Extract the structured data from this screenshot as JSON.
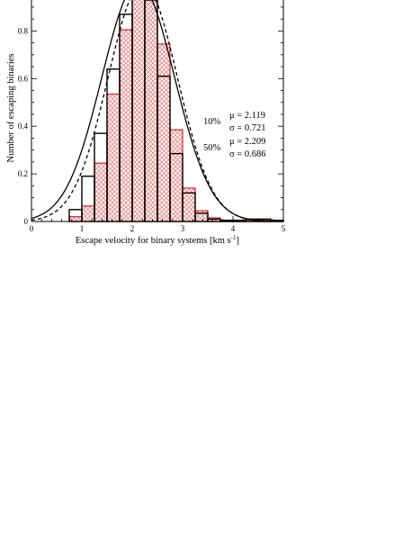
{
  "chart_data": {
    "type": "bar",
    "xlabel": "Escape velocity for binary systems [km s",
    "xlabel_superscript": "-1",
    "xlabel_close": "]",
    "ylabel": "Number of escaping binaries",
    "xlim": [
      0,
      5
    ],
    "ylim": [
      0,
      0.93
    ],
    "x_ticks": [
      "0",
      "1",
      "2",
      "3",
      "4",
      "5"
    ],
    "y_ticks": [
      "0",
      "0.2",
      "0.4",
      "0.6",
      "0.8"
    ],
    "bin_width": 0.25,
    "bin_left_edges": [
      0.75,
      1.0,
      1.25,
      1.5,
      1.75,
      2.0,
      2.25,
      2.5,
      2.75,
      3.0,
      3.25,
      3.5,
      3.75,
      4.0,
      4.25,
      4.5,
      4.75
    ],
    "series": [
      {
        "name": "10%",
        "style": "black outlined bars",
        "color": "#000000",
        "values": [
          0.05,
          0.19,
          0.37,
          0.64,
          0.87,
          1.0,
          0.93,
          0.61,
          0.285,
          0.12,
          0.035,
          0.01,
          0.005,
          0.005,
          0.01,
          0.01,
          0.005
        ],
        "fit": {
          "mu": 2.119,
          "sigma": 0.721,
          "line_style": "solid"
        }
      },
      {
        "name": "50%",
        "style": "red hatched bars",
        "color": "#d42020",
        "hatch_color": "#e89090",
        "values": [
          0.02,
          0.065,
          0.245,
          0.535,
          0.805,
          0.94,
          0.96,
          0.745,
          0.385,
          0.14,
          0.045,
          0.015,
          0.005,
          0.005,
          0.005,
          0.005,
          0.005
        ],
        "fit": {
          "mu": 2.209,
          "sigma": 0.686,
          "line_style": "dashed"
        }
      }
    ],
    "annotations": [
      {
        "label": "10%",
        "mu": "μ = 2.119",
        "sigma": "σ = 0.721"
      },
      {
        "label": "50%",
        "mu": "μ = 2.209",
        "sigma": "σ = 0.686"
      }
    ]
  }
}
